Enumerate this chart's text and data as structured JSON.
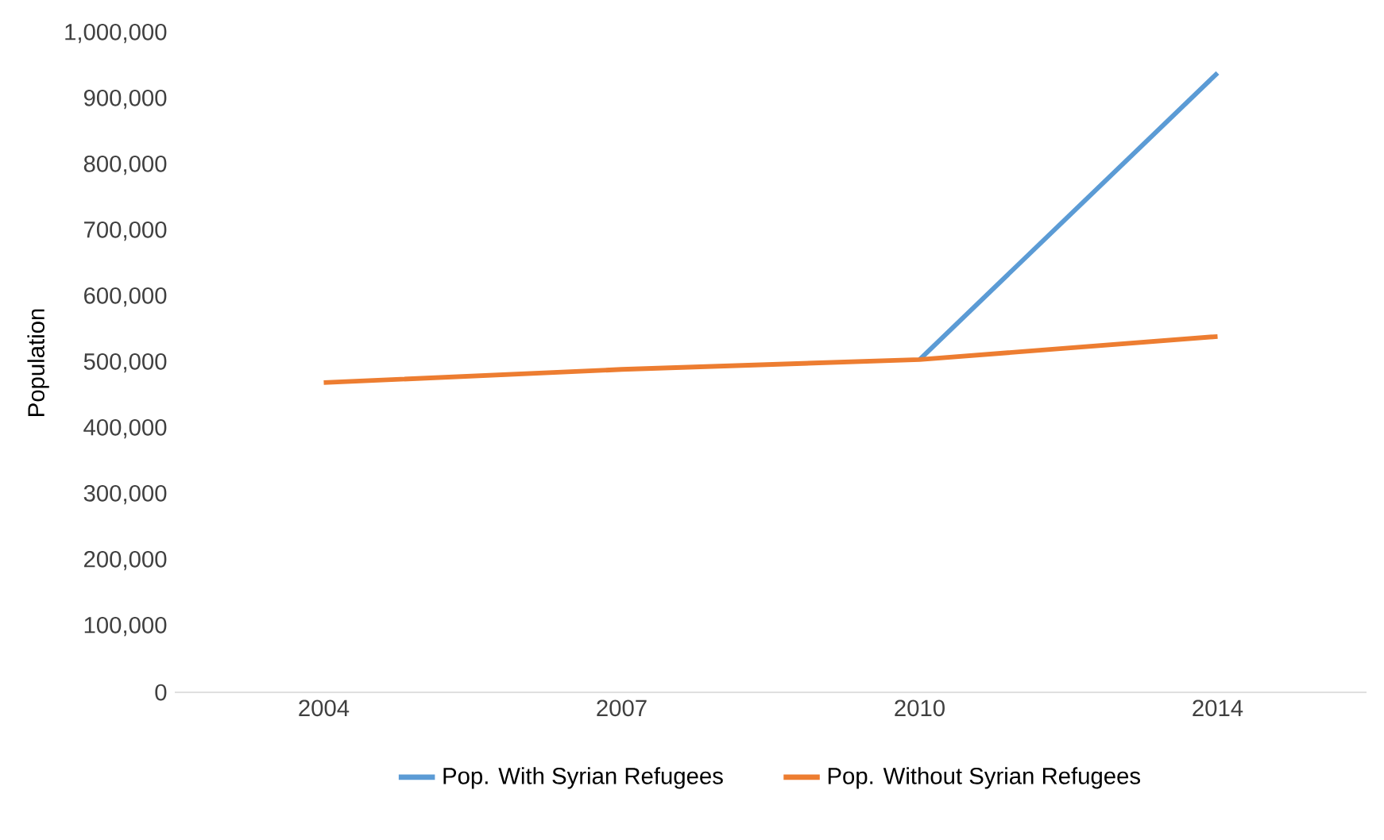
{
  "chart_data": {
    "type": "line",
    "ylabel": "Population",
    "categories": [
      "2004",
      "2007",
      "2010",
      "2014"
    ],
    "series": [
      {
        "name": "Pop. With Syrian Refugees",
        "color": "#5b9bd5",
        "values": [
          null,
          null,
          505000,
          940000
        ]
      },
      {
        "name": "Pop. Without Syrian Refugees",
        "color": "#ed7d31",
        "values": [
          470000,
          490000,
          505000,
          540000
        ]
      }
    ],
    "ylim": [
      0,
      1000000
    ],
    "yticks": [
      0,
      {
        "value": 100000,
        "label": "100,000"
      },
      {
        "value": 200000,
        "label": "200,000"
      },
      {
        "value": 300000,
        "label": "300,000"
      },
      {
        "value": 400000,
        "label": "400,000"
      },
      {
        "value": 500000,
        "label": "500,000"
      },
      {
        "value": 600000,
        "label": "600,000"
      },
      {
        "value": 700000,
        "label": "700,000"
      },
      {
        "value": 800000,
        "label": "800,000"
      },
      {
        "value": 900000,
        "label": "900,000"
      },
      {
        "value": 1000000,
        "label": "1,000,000"
      }
    ],
    "legend": "bottom",
    "marker": "none",
    "line_style": "solid"
  }
}
